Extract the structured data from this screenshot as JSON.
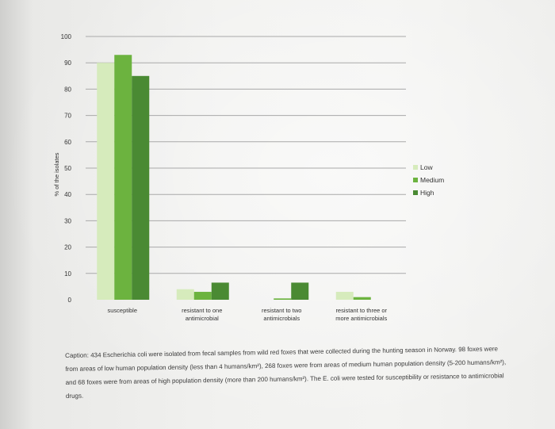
{
  "chart_data": {
    "type": "bar",
    "title": "",
    "xlabel": "",
    "ylabel": "% of the isolates",
    "ylim": [
      0,
      100
    ],
    "yticks": [
      0,
      10,
      20,
      30,
      40,
      50,
      60,
      70,
      80,
      90,
      100
    ],
    "grid": true,
    "legend_position": "right",
    "categories": [
      "susceptible",
      "resistant to one\nantimicrobial",
      "resistant to two\nantimicrobials",
      "resistant to three or\nmore antimicrobials"
    ],
    "series": [
      {
        "name": "Low",
        "color": "#d6ebbc",
        "values": [
          90,
          4,
          0,
          3
        ]
      },
      {
        "name": "Medium",
        "color": "#6cb33f",
        "values": [
          93,
          3,
          0.5,
          1
        ]
      },
      {
        "name": "High",
        "color": "#4a8a33",
        "values": [
          85,
          6.5,
          6.5,
          0
        ]
      }
    ]
  },
  "caption": "Caption: 434 Escherichia coli were isolated from fecal samples from wild red foxes that were collected during the hunting season in Norway. 98 foxes were from areas of low human population density (less than 4 humans/km²), 268 foxes were from areas of medium human population density (5-200 humans/km²), and 68 foxes were from areas of high population density (more than 200 humans/km²). The E. coli were tested for susceptibility or resistance to antimicrobial drugs."
}
